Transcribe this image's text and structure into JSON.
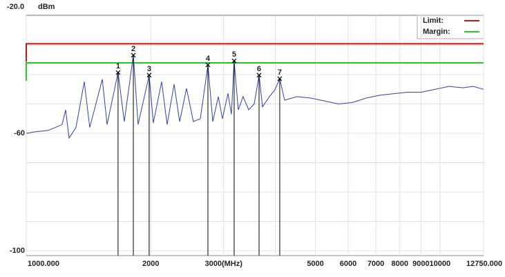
{
  "chart_data": {
    "type": "line",
    "y_unit": "dBm",
    "xscale": "log",
    "grid": true,
    "xlim": [
      1000,
      12750
    ],
    "ylim": [
      -100,
      -20
    ],
    "xticks": [
      {
        "value": 1000,
        "label": "1000.000"
      },
      2000,
      {
        "value": 3000,
        "label": "3000(MHz)"
      },
      5000,
      6000,
      7000,
      8000,
      9000,
      10000,
      {
        "value": 12750,
        "label": "12750.000"
      }
    ],
    "xgrid_minor": [
      4000
    ],
    "yticks": [
      {
        "value": -20,
        "label": "-20.0"
      },
      -60,
      -100
    ],
    "ygrid_minor": [
      -30,
      -40,
      -50,
      -70,
      -80,
      -90
    ],
    "series": [
      {
        "color": "#2f3fa8",
        "x": [
          1000,
          1050,
          1131,
          1221,
          1245,
          1269,
          1319,
          1381,
          1424,
          1527,
          1568,
          1667,
          1726,
          1815,
          1864,
          1982,
          2028,
          2125,
          2190,
          2277,
          2349,
          2440,
          2535,
          2635,
          2749,
          2824,
          2912,
          2980,
          3074,
          3133,
          3181,
          3255,
          3344,
          3449,
          3557,
          3654,
          3725,
          3869,
          3991,
          4100,
          4212,
          4513,
          4875,
          5265,
          5686,
          6141,
          6632,
          7163,
          7735,
          8348,
          9016,
          9738,
          10517,
          11360,
          12036,
          12750
        ],
        "values": [
          -60,
          -59.5,
          -59,
          -57,
          -52,
          -61.6,
          -58,
          -42.4,
          -58,
          -41.6,
          -57,
          -39.3,
          -56,
          -33.4,
          -57,
          -40.2,
          -56.5,
          -42.4,
          -57,
          -43.3,
          -56,
          -44.7,
          -56,
          -55,
          -36.7,
          -56,
          -47.5,
          -55,
          -46.4,
          -53.5,
          -35.3,
          -52,
          -47.5,
          -52,
          -50,
          -40.2,
          -51,
          -47.5,
          -45.2,
          -41.4,
          -48.7,
          -47.5,
          -48,
          -49,
          -50,
          -49.5,
          -48,
          -47,
          -46.5,
          -46,
          -46,
          -45,
          -44,
          -44.5,
          -44,
          -45
        ]
      }
    ],
    "limits": [
      {
        "name": "Limit:",
        "color": "#cc1111",
        "value": -29.5
      },
      {
        "name": "Margin:",
        "color": "#22cc22",
        "value": -36
      }
    ],
    "markers": [
      {
        "label": "1",
        "x": 1667,
        "y": -39.3
      },
      {
        "label": "2",
        "x": 1815,
        "y": -33.4
      },
      {
        "label": "3",
        "x": 1982,
        "y": -40.2
      },
      {
        "label": "4",
        "x": 2749,
        "y": -36.7
      },
      {
        "label": "5",
        "x": 3181,
        "y": -35.3
      },
      {
        "label": "6",
        "x": 3654,
        "y": -40.2
      },
      {
        "label": "7",
        "x": 4100,
        "y": -41.4
      }
    ]
  }
}
